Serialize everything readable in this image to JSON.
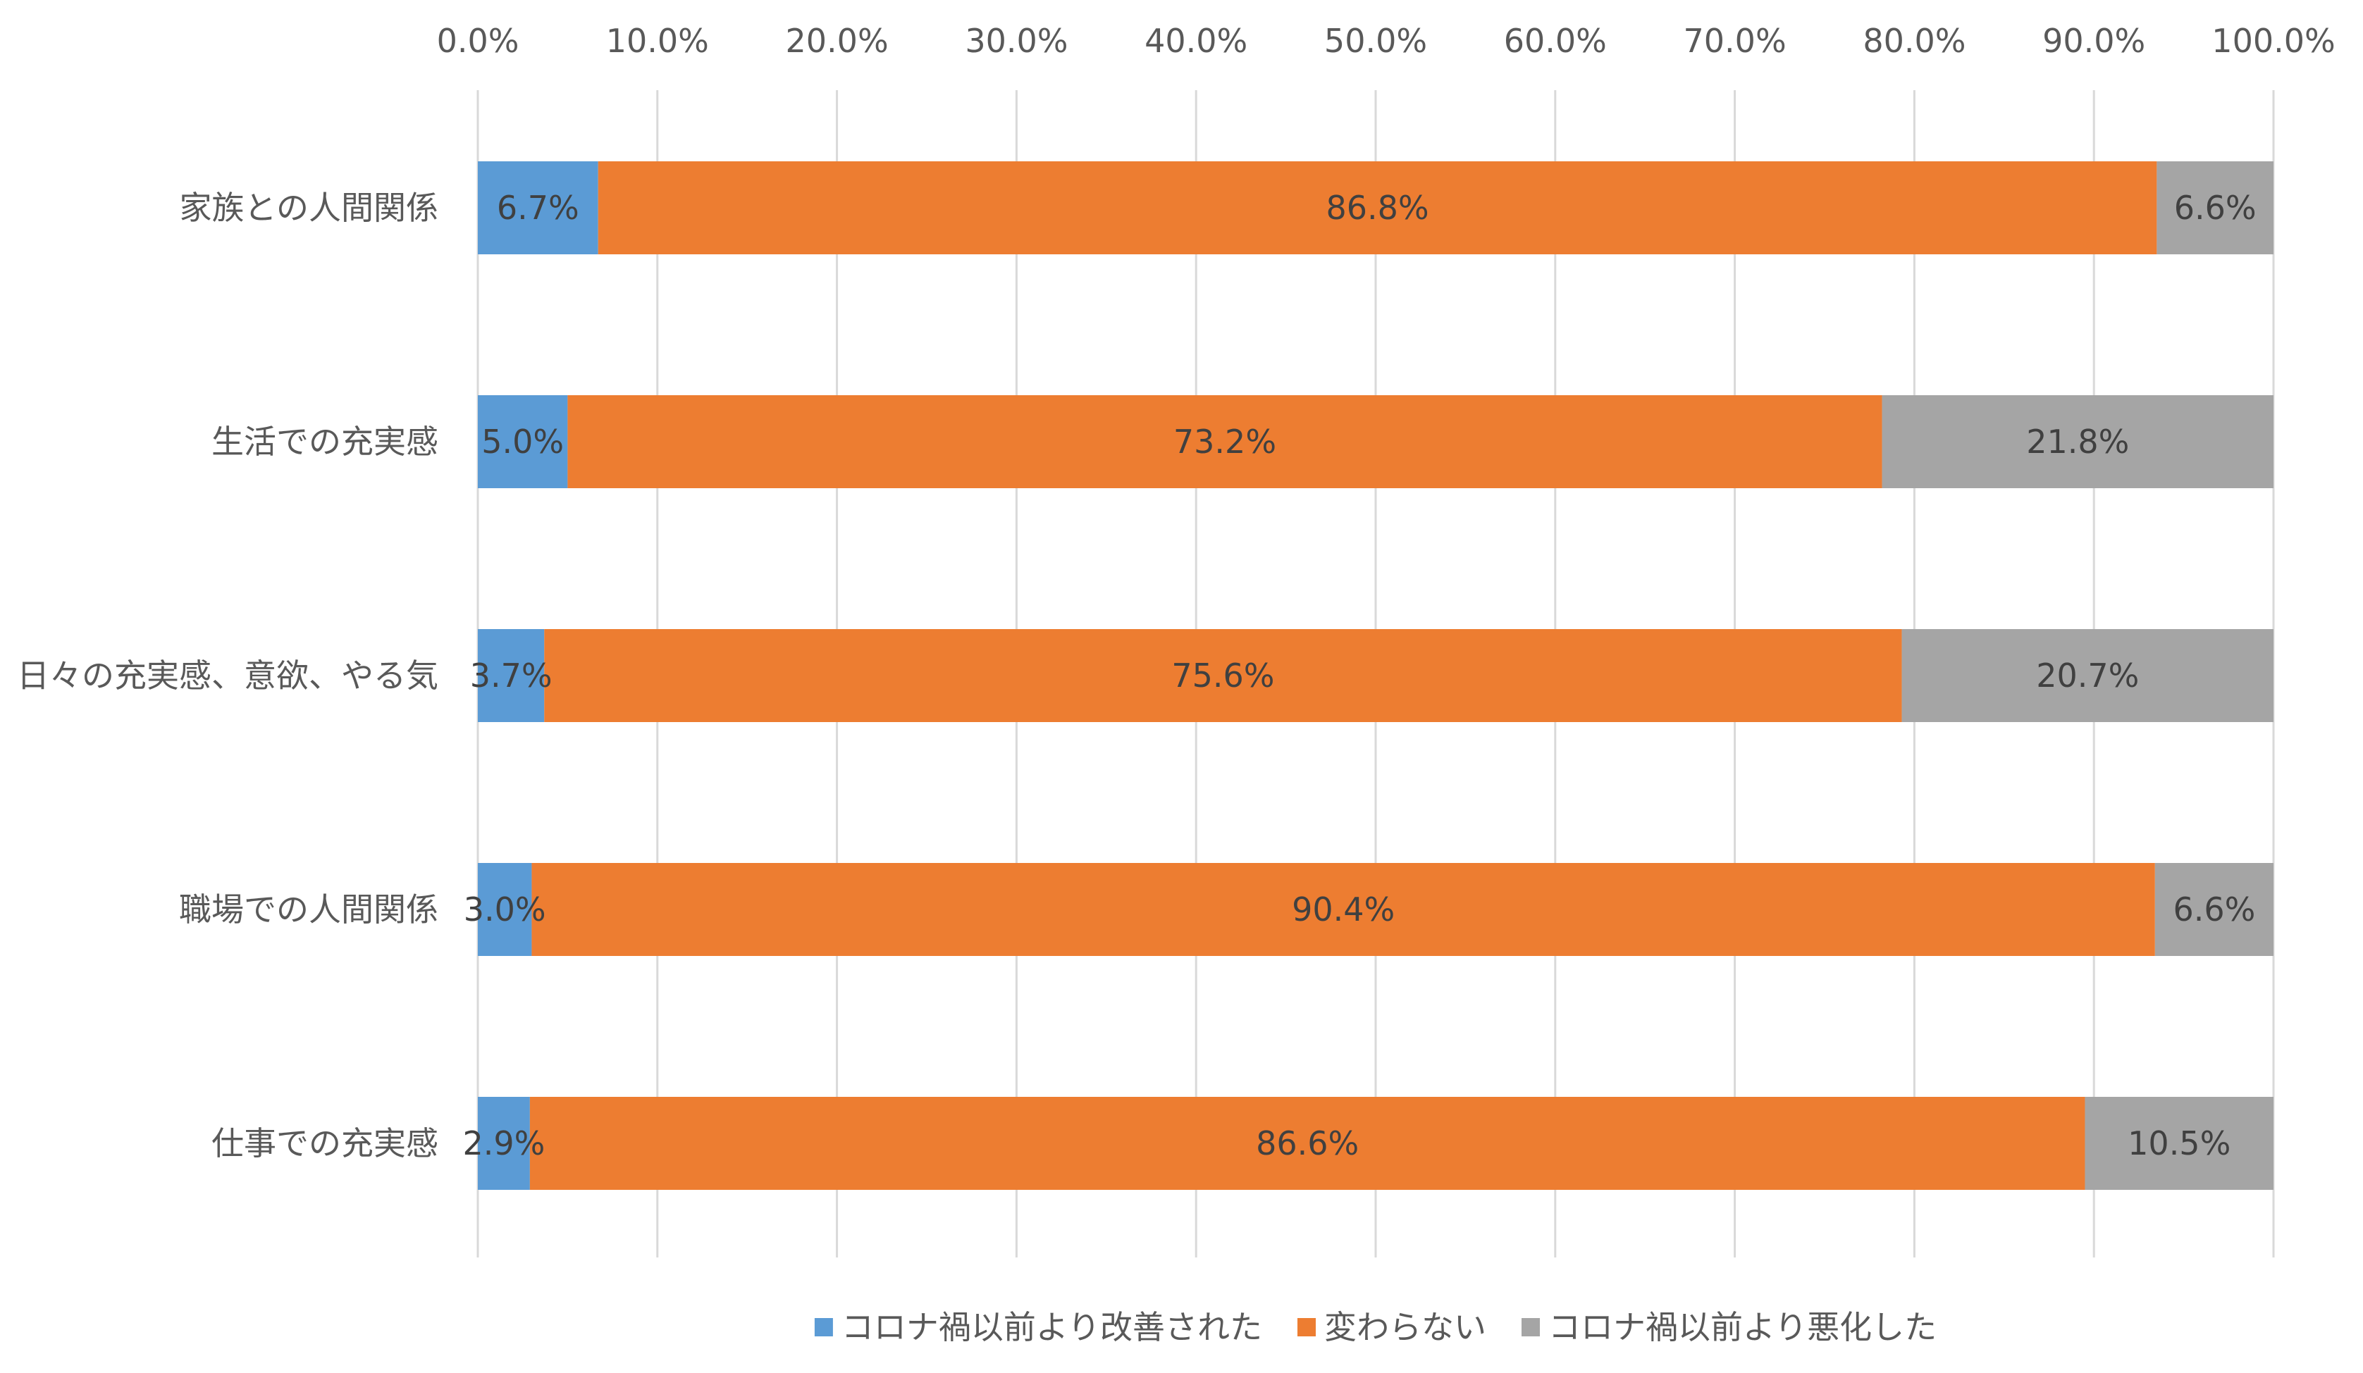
{
  "chart_data": {
    "type": "bar",
    "orientation": "horizontal",
    "stacked": true,
    "categories": [
      "家族との人間関係",
      "生活での充実感",
      "日々の充実感、意欲、やる気",
      "職場での人間関係",
      "仕事での充実感"
    ],
    "series": [
      {
        "name": "コロナ禍以前より改善された",
        "color": "#5B9BD5",
        "values": [
          6.7,
          5.0,
          3.7,
          3.0,
          2.9
        ],
        "labels": [
          "6.7%",
          "5.0%",
          "3.7%",
          "3.0%",
          "2.9%"
        ]
      },
      {
        "name": "変わらない",
        "color": "#ED7D31",
        "values": [
          86.8,
          73.2,
          75.6,
          90.4,
          86.6
        ],
        "labels": [
          "86.8%",
          "73.2%",
          "75.6%",
          "90.4%",
          "86.6%"
        ]
      },
      {
        "name": "コロナ禍以前より悪化した",
        "color": "#A5A5A5",
        "values": [
          6.6,
          21.8,
          20.7,
          6.6,
          10.5
        ],
        "labels": [
          "6.6%",
          "21.8%",
          "20.7%",
          "6.6%",
          "10.5%"
        ]
      }
    ],
    "xlim": [
      0,
      100
    ],
    "x_ticks": [
      0,
      10,
      20,
      30,
      40,
      50,
      60,
      70,
      80,
      90,
      100
    ],
    "x_tick_labels": [
      "0.0%",
      "10.0%",
      "20.0%",
      "30.0%",
      "40.0%",
      "50.0%",
      "60.0%",
      "70.0%",
      "80.0%",
      "90.0%",
      "100.0%"
    ],
    "x_axis_position": "top",
    "grid": "vertical",
    "grid_color": "#D9D9D9",
    "text_color": "#595959",
    "label_color": "#404040",
    "legend_position": "bottom",
    "title": "",
    "xlabel": "",
    "ylabel": ""
  }
}
